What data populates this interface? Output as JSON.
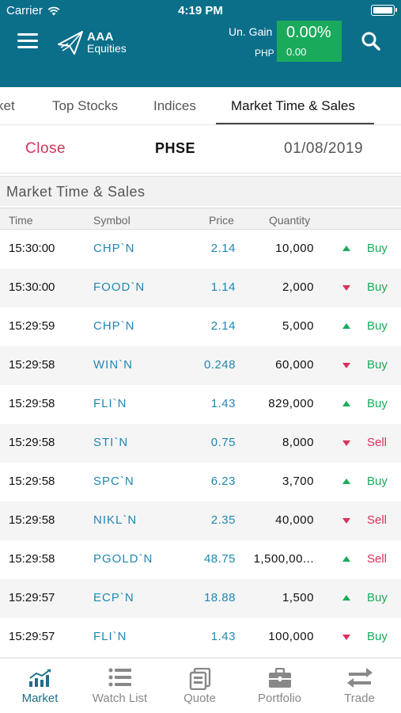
{
  "status_bar": {
    "carrier": "Carrier",
    "time": "4:19 PM"
  },
  "header": {
    "logo_line1": "AAA",
    "logo_line2": "Equities",
    "ungain_label": "Un. Gain",
    "currency": "PHP",
    "gain_percent": "0.00%",
    "gain_amount": "0.00",
    "colors": {
      "header_bg": "#0b6f8a",
      "gain_box": "#1aaa5b"
    }
  },
  "tabs": [
    {
      "label": "ket"
    },
    {
      "label": "Top Stocks"
    },
    {
      "label": "Indices"
    },
    {
      "label": "Market Time & Sales",
      "active": true
    }
  ],
  "sub_header": {
    "close_label": "Close",
    "exchange": "PHSE",
    "date": "01/08/2019"
  },
  "section_title": "Market Time & Sales",
  "columns": {
    "time": "Time",
    "symbol": "Symbol",
    "price": "Price",
    "quantity": "Quantity"
  },
  "rows": [
    {
      "time": "15:30:00",
      "symbol": "CHP`N",
      "price": "2.14",
      "quantity": "10,000",
      "direction": "up",
      "side": "Buy"
    },
    {
      "time": "15:30:00",
      "symbol": "FOOD`N",
      "price": "1.14",
      "quantity": "2,000",
      "direction": "down",
      "side": "Buy"
    },
    {
      "time": "15:29:59",
      "symbol": "CHP`N",
      "price": "2.14",
      "quantity": "5,000",
      "direction": "up",
      "side": "Buy"
    },
    {
      "time": "15:29:58",
      "symbol": "WIN`N",
      "price": "0.248",
      "quantity": "60,000",
      "direction": "down",
      "side": "Buy"
    },
    {
      "time": "15:29:58",
      "symbol": "FLI`N",
      "price": "1.43",
      "quantity": "829,000",
      "direction": "up",
      "side": "Buy"
    },
    {
      "time": "15:29:58",
      "symbol": "STI`N",
      "price": "0.75",
      "quantity": "8,000",
      "direction": "down",
      "side": "Sell"
    },
    {
      "time": "15:29:58",
      "symbol": "SPC`N",
      "price": "6.23",
      "quantity": "3,700",
      "direction": "up",
      "side": "Buy"
    },
    {
      "time": "15:29:58",
      "symbol": "NIKL`N",
      "price": "2.35",
      "quantity": "40,000",
      "direction": "down",
      "side": "Sell"
    },
    {
      "time": "15:29:58",
      "symbol": "PGOLD`N",
      "price": "48.75",
      "quantity": "1,500,00...",
      "direction": "up",
      "side": "Sell"
    },
    {
      "time": "15:29:57",
      "symbol": "ECP`N",
      "price": "18.88",
      "quantity": "1,500",
      "direction": "up",
      "side": "Buy"
    },
    {
      "time": "15:29:57",
      "symbol": "FLI`N",
      "price": "1.43",
      "quantity": "100,000",
      "direction": "down",
      "side": "Buy"
    }
  ],
  "bottom_nav": [
    {
      "label": "Market",
      "icon": "market-chart-icon",
      "active": true
    },
    {
      "label": "Watch List",
      "icon": "watch-list-icon"
    },
    {
      "label": "Quote",
      "icon": "quote-icon"
    },
    {
      "label": "Portfolio",
      "icon": "portfolio-briefcase-icon"
    },
    {
      "label": "Trade",
      "icon": "trade-arrows-icon"
    }
  ]
}
